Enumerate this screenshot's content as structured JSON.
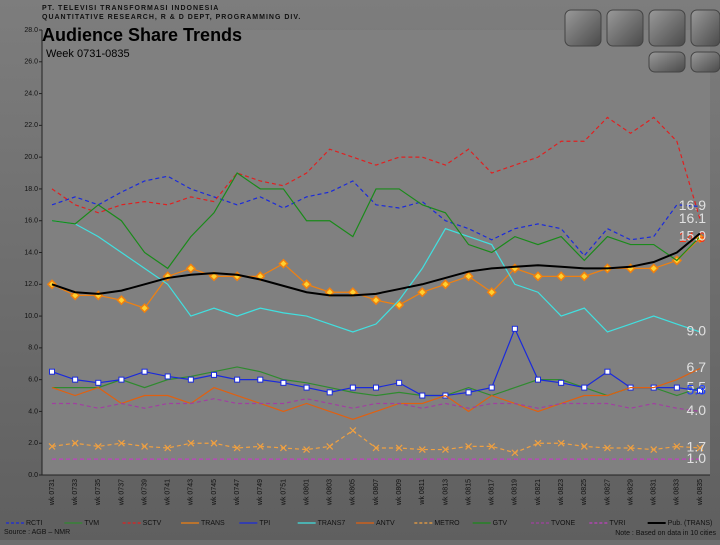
{
  "header": {
    "company": "PT. TELEVISI TRANSFORMASI INDONESIA",
    "dept": "QUANTITATIVE RESEARCH, R & D DEPT, PROGRAMMING DIV."
  },
  "chart_data": {
    "type": "line",
    "title": "Audience Share Trends",
    "subtitle": "Week 0731-0835",
    "source": "Source : AGB – NMR",
    "note": "Note : Based on data in 10 cities",
    "categories": [
      "wk 0731",
      "wk 0733",
      "wk 0735",
      "wk 0737",
      "wk 0739",
      "wk 0741",
      "wk 0743",
      "wk 0745",
      "wk 0747",
      "wk 0749",
      "wk 0751",
      "wk 0801",
      "wk 0803",
      "wk 0805",
      "wk 0807",
      "wk 0809",
      "wk 0811",
      "wk 0813",
      "wk 0815",
      "wk 0817",
      "wk 0819",
      "wk 0821",
      "wk 0823",
      "wk 0825",
      "wk 0827",
      "wk 0829",
      "wk 0831",
      "wk 0833",
      "wk 0835"
    ],
    "ylim": [
      0,
      28
    ],
    "yticks": [
      {
        "value": 0,
        "label": "0.0"
      },
      {
        "value": 2,
        "label": "2.0"
      },
      {
        "value": 4,
        "label": "4.0"
      },
      {
        "value": 6,
        "label": "6.0"
      },
      {
        "value": 8,
        "label": "8.0"
      },
      {
        "value": 10,
        "label": "10.0"
      },
      {
        "value": 12,
        "label": "12.0"
      },
      {
        "value": 14,
        "label": "14.0"
      },
      {
        "value": 16,
        "label": "16.0"
      },
      {
        "value": 18,
        "label": "18.0"
      },
      {
        "value": 20,
        "label": "20.0"
      },
      {
        "value": 22,
        "label": "22.0"
      },
      {
        "value": 24,
        "label": "24.0"
      },
      {
        "value": 26,
        "label": "26.0"
      },
      {
        "value": 28,
        "label": "28.0"
      }
    ],
    "series": [
      {
        "name": "RCTI",
        "color": "#1a2adb",
        "dash": true,
        "label_color": "#e0e0e0",
        "values": [
          17,
          17.5,
          17,
          17.8,
          18.5,
          18.8,
          18,
          17.5,
          17,
          17.5,
          16.8,
          17.5,
          17.8,
          18.5,
          17,
          16.8,
          17.2,
          16,
          15.5,
          14.8,
          15.5,
          15.8,
          15.5,
          13.8,
          15.5,
          14.8,
          15,
          17,
          16.9
        ],
        "value_labels": [
          null,
          null,
          null,
          null,
          null,
          null,
          null,
          null,
          null,
          null,
          null,
          null,
          null,
          null,
          null,
          null,
          null,
          null,
          null,
          null,
          null,
          null,
          null,
          null,
          null,
          null,
          null,
          null,
          "16.9"
        ]
      },
      {
        "name": "TVM",
        "color": "#2f8a2f",
        "label_color": "#e0e0e0",
        "values": [
          5.5,
          5.5,
          5.5,
          6,
          5.5,
          6,
          6.2,
          6.5,
          6.8,
          6.5,
          6,
          5.8,
          5.5,
          5.2,
          5,
          5.2,
          5,
          5,
          5.5,
          5,
          5.5,
          6,
          6,
          5.5,
          5,
          5.5,
          5.5,
          5,
          5.5
        ],
        "value_labels": [
          null,
          null,
          null,
          null,
          null,
          null,
          null,
          null,
          null,
          null,
          null,
          null,
          null,
          null,
          null,
          null,
          null,
          null,
          null,
          null,
          null,
          null,
          null,
          null,
          null,
          null,
          null,
          null,
          "5.5"
        ]
      },
      {
        "name": "SCTV",
        "color": "#e02020",
        "dash": true,
        "label_color": "#e0e0e0",
        "values": [
          18,
          17,
          16.5,
          17,
          17.2,
          17,
          17.5,
          17.2,
          19,
          18.5,
          18.2,
          19,
          20.5,
          20,
          19.5,
          20,
          20,
          19.5,
          20.5,
          19,
          19.5,
          20,
          21,
          21,
          22.5,
          21.5,
          22.5,
          21,
          16.1
        ],
        "value_labels": [
          null,
          null,
          null,
          null,
          null,
          null,
          null,
          null,
          null,
          null,
          null,
          null,
          null,
          null,
          null,
          null,
          null,
          null,
          null,
          null,
          null,
          null,
          null,
          null,
          null,
          null,
          null,
          null,
          "16.1"
        ]
      },
      {
        "name": "TRANS",
        "color": "#f08010",
        "marker": "diamond",
        "label_color": "#ff3010",
        "values": [
          12,
          11.3,
          11.3,
          11,
          10.5,
          12.5,
          13,
          12.5,
          12.5,
          12.5,
          13.3,
          12,
          11.5,
          11.5,
          11,
          10.7,
          11.5,
          12,
          12.5,
          11.5,
          13,
          12.5,
          12.5,
          12.5,
          13,
          13,
          13,
          13.5,
          14.9
        ],
        "value_labels": [
          null,
          null,
          null,
          null,
          null,
          null,
          null,
          null,
          null,
          null,
          null,
          null,
          null,
          null,
          null,
          null,
          null,
          null,
          null,
          null,
          null,
          null,
          null,
          null,
          null,
          null,
          null,
          null,
          "14.9"
        ]
      },
      {
        "name": "TPI",
        "color": "#1a2adb",
        "marker": "square",
        "label_color": "#2040ff",
        "values": [
          6.5,
          6,
          5.8,
          6,
          6.5,
          6.2,
          6,
          6.3,
          6,
          6,
          5.8,
          5.5,
          5.2,
          5.5,
          5.5,
          5.8,
          5,
          5,
          5.2,
          5.5,
          9.2,
          6,
          5.8,
          5.5,
          6.5,
          5.5,
          5.5,
          5.5,
          5.3
        ],
        "value_labels": [
          null,
          null,
          null,
          null,
          null,
          null,
          null,
          null,
          null,
          null,
          null,
          null,
          null,
          null,
          null,
          null,
          null,
          null,
          null,
          null,
          null,
          null,
          null,
          null,
          null,
          null,
          null,
          null,
          "5.3"
        ]
      },
      {
        "name": "TRANS7",
        "color": "#40e0e0",
        "label_color": "#e0e0e0",
        "values": [
          16,
          15.8,
          15,
          14,
          13,
          12,
          10,
          10.5,
          10,
          10.5,
          10.2,
          10,
          9.5,
          9,
          9.5,
          11,
          13,
          15.5,
          15,
          14.5,
          12,
          11.5,
          10,
          10.5,
          9,
          9.5,
          10,
          9.5,
          9.0
        ],
        "value_labels": [
          null,
          null,
          null,
          null,
          null,
          null,
          null,
          null,
          null,
          null,
          null,
          null,
          null,
          null,
          null,
          null,
          null,
          null,
          null,
          null,
          null,
          null,
          null,
          null,
          null,
          null,
          null,
          null,
          "9.0"
        ]
      },
      {
        "name": "ANTV",
        "color": "#e06010",
        "label_color": "#e0e0e0",
        "values": [
          5.5,
          5,
          5.5,
          4.5,
          5,
          5,
          4.5,
          5.5,
          5,
          4.5,
          4,
          4.5,
          4,
          3.5,
          4,
          4.5,
          4.5,
          5,
          4,
          5,
          4.5,
          4,
          4.5,
          5,
          5,
          5.5,
          5.5,
          6,
          6.7
        ],
        "value_labels": [
          null,
          null,
          null,
          null,
          null,
          null,
          null,
          null,
          null,
          null,
          null,
          null,
          null,
          null,
          null,
          null,
          null,
          null,
          null,
          null,
          null,
          null,
          null,
          null,
          null,
          null,
          null,
          null,
          "6.7"
        ]
      },
      {
        "name": "METRO",
        "color": "#f0a040",
        "dash": true,
        "marker": "x",
        "label_color": "#e0e0e0",
        "values": [
          1.8,
          2,
          1.8,
          2,
          1.8,
          1.7,
          2,
          2,
          1.7,
          1.8,
          1.7,
          1.6,
          1.8,
          2.8,
          1.7,
          1.7,
          1.6,
          1.6,
          1.8,
          1.8,
          1.4,
          2,
          2,
          1.8,
          1.7,
          1.7,
          1.6,
          1.8,
          1.7
        ],
        "value_labels": [
          null,
          null,
          null,
          null,
          null,
          null,
          null,
          null,
          null,
          null,
          null,
          null,
          null,
          null,
          null,
          null,
          null,
          null,
          null,
          null,
          null,
          null,
          null,
          null,
          null,
          null,
          null,
          null,
          "1.7"
        ]
      },
      {
        "name": "GTV",
        "color": "#1a8a1a",
        "label_color": "#e0e0e0",
        "values": [
          16,
          15.8,
          17,
          16,
          14,
          13,
          15,
          16.5,
          19,
          18,
          18,
          16,
          16,
          15,
          18,
          18,
          17,
          16.5,
          14.5,
          14,
          15,
          14.5,
          15,
          13.5,
          15,
          14.5,
          14.5,
          13.5,
          15.0
        ],
        "value_labels": [
          null,
          null,
          null,
          null,
          null,
          null,
          null,
          null,
          null,
          null,
          null,
          null,
          null,
          null,
          null,
          null,
          null,
          null,
          null,
          null,
          null,
          null,
          null,
          null,
          null,
          null,
          null,
          null,
          "15.0"
        ]
      },
      {
        "name": "TVONE",
        "color": "#a040a0",
        "dash": true,
        "label_color": "#e0e0e0",
        "values": [
          4.5,
          4.5,
          4.2,
          4.5,
          4.2,
          4.5,
          4.5,
          4.8,
          4.5,
          4.5,
          4.5,
          4.8,
          4.5,
          4.2,
          4.5,
          4.5,
          4.2,
          4.5,
          4.2,
          4.5,
          4.5,
          4.2,
          4.5,
          4.5,
          4.5,
          4.2,
          4.5,
          4.2,
          4.0
        ],
        "value_labels": [
          null,
          null,
          null,
          null,
          null,
          null,
          null,
          null,
          null,
          null,
          null,
          null,
          null,
          null,
          null,
          null,
          null,
          null,
          null,
          null,
          null,
          null,
          null,
          null,
          null,
          null,
          null,
          null,
          "4.0"
        ]
      },
      {
        "name": "TVRI",
        "color": "#c040c0",
        "dash": true,
        "label_color": "#e0e0e0",
        "values": [
          1,
          1,
          1,
          1,
          1,
          1,
          1,
          1,
          1,
          1,
          1,
          1,
          1,
          1,
          1,
          1,
          1,
          1,
          1,
          1,
          1,
          1,
          1,
          1,
          1,
          1,
          1,
          1,
          1.0
        ],
        "value_labels": [
          null,
          null,
          null,
          null,
          null,
          null,
          null,
          null,
          null,
          null,
          null,
          null,
          null,
          null,
          null,
          null,
          null,
          null,
          null,
          null,
          null,
          null,
          null,
          null,
          null,
          null,
          null,
          null,
          "1.0"
        ]
      },
      {
        "name": "Pub. (TRANS)",
        "color": "#000000",
        "width": 2,
        "values": [
          12,
          11.5,
          11.4,
          11.6,
          12,
          12.4,
          12.6,
          12.7,
          12.6,
          12.3,
          11.9,
          11.5,
          11.3,
          11.3,
          11.4,
          11.7,
          12,
          12.4,
          12.8,
          13,
          13.1,
          13.2,
          13.1,
          13,
          13,
          13.1,
          13.4,
          14,
          15.2
        ]
      }
    ]
  }
}
